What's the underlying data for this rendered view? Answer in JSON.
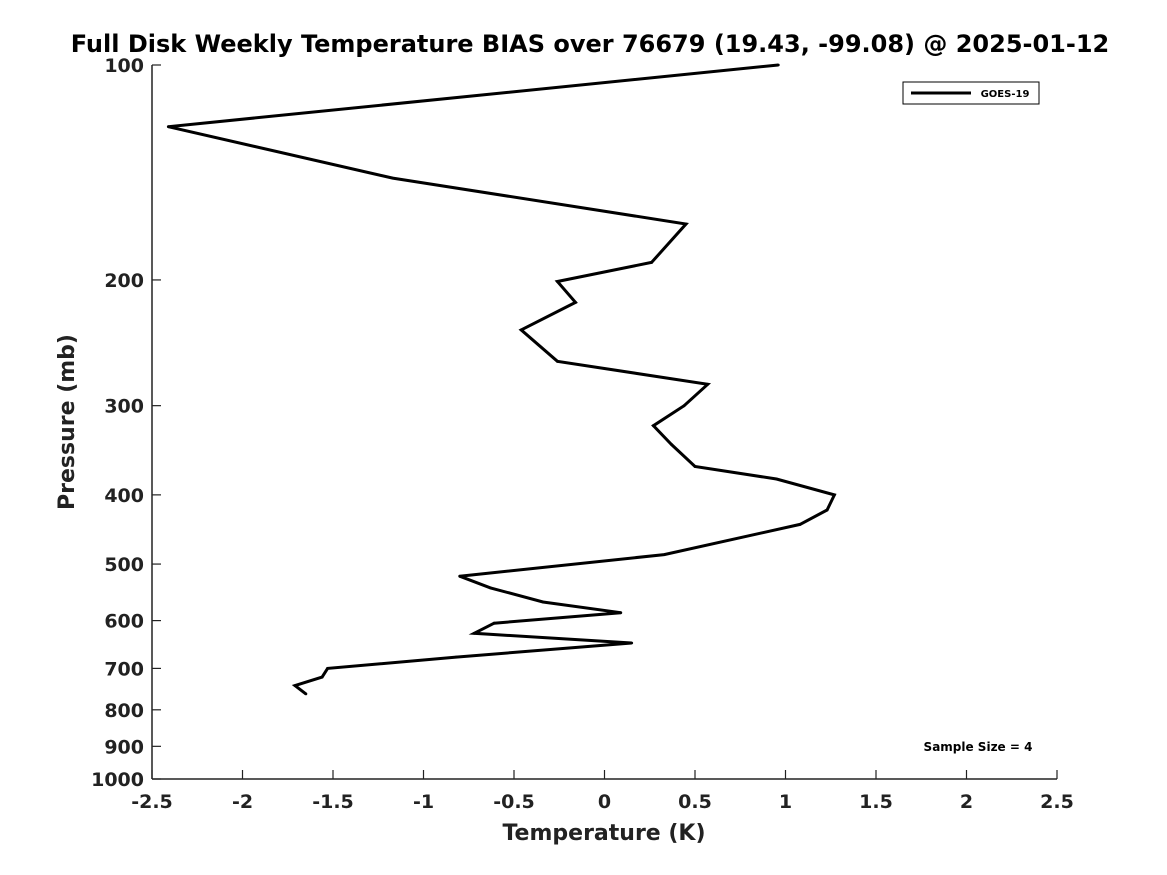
{
  "chart_data": {
    "type": "line",
    "title": "Full Disk Weekly Temperature BIAS over 76679 (19.43, -99.08) @ 2025-01-12",
    "xlabel": "Temperature (K)",
    "ylabel": "Pressure (mb)",
    "xlim": [
      -2.5,
      2.5
    ],
    "ylim": [
      100,
      1000
    ],
    "y_scale": "log",
    "y_inverted": true,
    "xticks": [
      -2.5,
      -2,
      -1.5,
      -1,
      -0.5,
      0,
      0.5,
      1,
      1.5,
      2,
      2.5
    ],
    "xtick_labels": [
      "-2.5",
      "-2",
      "-1.5",
      "-1",
      "-0.5",
      "0",
      "0.5",
      "1",
      "1.5",
      "2",
      "2.5"
    ],
    "yticks": [
      100,
      200,
      300,
      400,
      500,
      600,
      700,
      800,
      900,
      1000
    ],
    "ytick_labels": [
      "100",
      "200",
      "300",
      "400",
      "500",
      "600",
      "700",
      "800",
      "900",
      "1000"
    ],
    "grid": false,
    "legend_position": "top-right",
    "series": [
      {
        "name": "GOES-19",
        "color": "#000000",
        "points": [
          {
            "t": 0.96,
            "p": 100
          },
          {
            "t": -2.41,
            "p": 122
          },
          {
            "t": -1.17,
            "p": 144
          },
          {
            "t": 0.45,
            "p": 167
          },
          {
            "t": 0.26,
            "p": 189
          },
          {
            "t": -0.26,
            "p": 201
          },
          {
            "t": -0.16,
            "p": 215
          },
          {
            "t": -0.46,
            "p": 235
          },
          {
            "t": -0.26,
            "p": 260
          },
          {
            "t": 0.57,
            "p": 280
          },
          {
            "t": 0.44,
            "p": 300
          },
          {
            "t": 0.27,
            "p": 320
          },
          {
            "t": 0.37,
            "p": 340
          },
          {
            "t": 0.5,
            "p": 365
          },
          {
            "t": 0.95,
            "p": 380
          },
          {
            "t": 1.27,
            "p": 400
          },
          {
            "t": 1.23,
            "p": 420
          },
          {
            "t": 1.08,
            "p": 440
          },
          {
            "t": 0.33,
            "p": 485
          },
          {
            "t": -0.8,
            "p": 520
          },
          {
            "t": -0.63,
            "p": 540
          },
          {
            "t": -0.34,
            "p": 565
          },
          {
            "t": 0.09,
            "p": 585
          },
          {
            "t": -0.61,
            "p": 605
          },
          {
            "t": -0.72,
            "p": 625
          },
          {
            "t": 0.15,
            "p": 645
          },
          {
            "t": -0.82,
            "p": 675
          },
          {
            "t": -1.53,
            "p": 700
          },
          {
            "t": -1.56,
            "p": 720
          },
          {
            "t": -1.71,
            "p": 740
          },
          {
            "t": -1.65,
            "p": 760
          }
        ]
      }
    ],
    "annotations": [
      {
        "text": "Sample Size = 4",
        "position": "bottom-right"
      }
    ]
  }
}
